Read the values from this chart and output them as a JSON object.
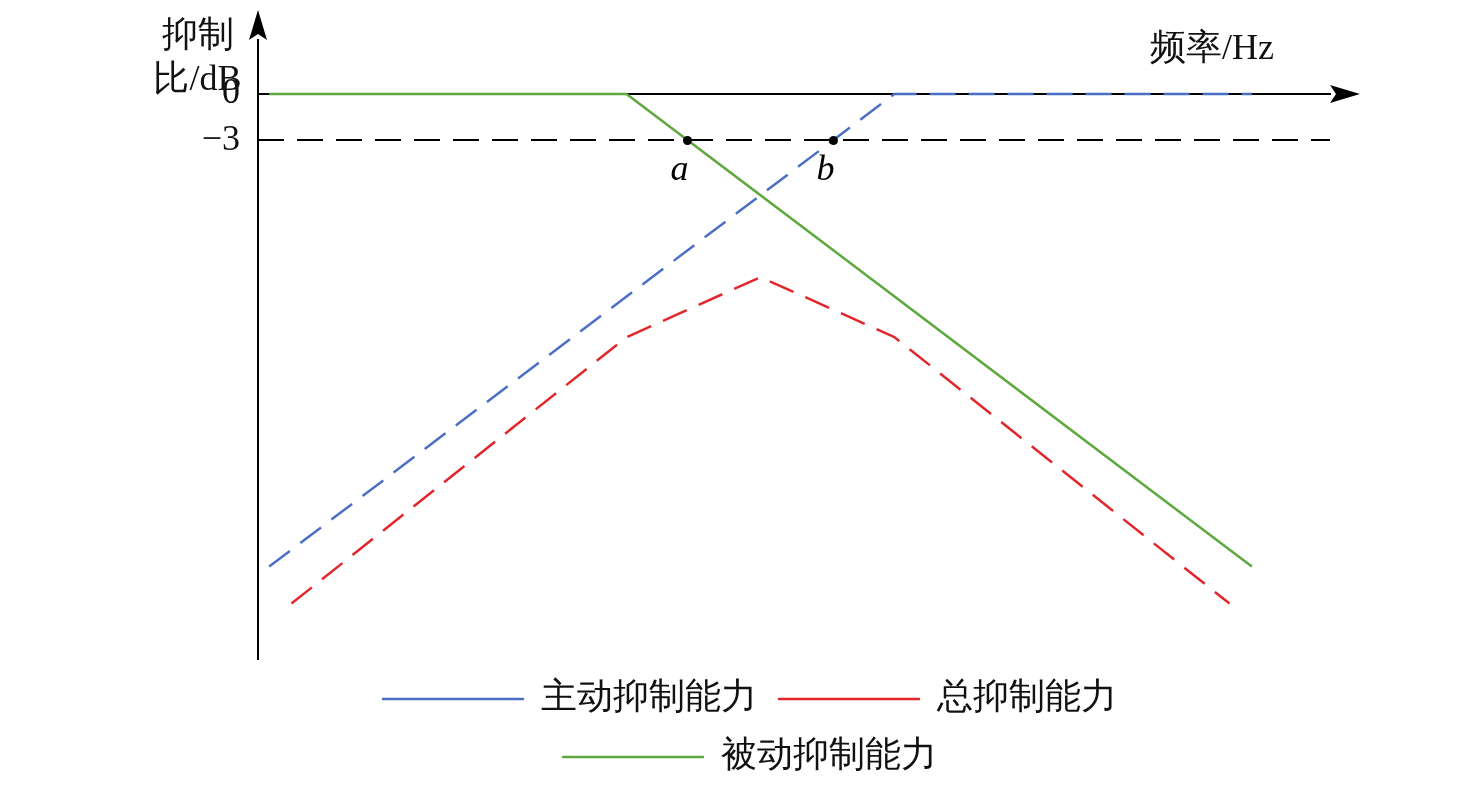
{
  "chart_data": {
    "type": "line",
    "xlabel": "频率/Hz",
    "ylabel": "抑制比/dB",
    "categories": [
      null,
      null,
      null,
      null,
      null,
      null,
      null,
      null,
      null,
      null,
      null,
      null,
      null,
      null,
      null,
      null,
      null,
      null,
      null,
      null,
      null,
      null,
      null,
      null,
      null,
      null,
      null,
      null,
      null,
      null,
      null,
      null,
      null,
      null,
      null,
      null,
      null,
      null,
      null,
      null,
      null,
      null,
      null,
      null,
      null,
      null,
      null,
      null
    ],
    "series": [
      {
        "name": "主动抑制能力",
        "color": "#4a6fc4",
        "line_style": "dashed",
        "values": [
          -30.7,
          null,
          null,
          null,
          null,
          null,
          null,
          null,
          null,
          null,
          null,
          null,
          null,
          null,
          null,
          null,
          null,
          null,
          null,
          null,
          null,
          null,
          null,
          null,
          null,
          null,
          null,
          null,
          0,
          null,
          null,
          null,
          null,
          null,
          null,
          null,
          null,
          null,
          null,
          null,
          null,
          null,
          null,
          null,
          0,
          null,
          null,
          null
        ]
      },
      {
        "name": "总抑制能力",
        "color": "#e3262b",
        "line_style": "dashed",
        "values": [
          null,
          -33.1,
          null,
          null,
          null,
          null,
          null,
          null,
          null,
          null,
          null,
          null,
          null,
          null,
          null,
          null,
          -15.8,
          null,
          null,
          null,
          null,
          null,
          -11.9,
          null,
          null,
          null,
          null,
          null,
          -15.8,
          null,
          null,
          null,
          null,
          null,
          null,
          null,
          null,
          null,
          null,
          null,
          null,
          null,
          null,
          -33.1,
          null,
          null,
          null,
          null
        ]
      },
      {
        "name": "被动抑制能力",
        "color": "#5fa83f",
        "line_style": "solid",
        "values": [
          0,
          null,
          null,
          null,
          null,
          null,
          null,
          null,
          null,
          null,
          null,
          null,
          null,
          null,
          null,
          null,
          0,
          null,
          null,
          null,
          null,
          null,
          null,
          null,
          null,
          null,
          null,
          null,
          null,
          null,
          null,
          null,
          null,
          null,
          null,
          null,
          null,
          null,
          null,
          null,
          null,
          null,
          null,
          null,
          -30.7,
          null,
          null,
          null
        ]
      }
    ],
    "ylim": [
      -36.7,
      3.5
    ],
    "yticks": [
      0,
      {
        "value": -3,
        "label": "−3"
      }
    ],
    "ref_lines": [
      {
        "axis": "y",
        "value": -3,
        "color": "#000000",
        "line_style": "dashed"
      }
    ],
    "annotations": [
      {
        "text": "a",
        "y": -3
      },
      {
        "text": "b",
        "y": -3
      }
    ],
    "grid": false,
    "legend": "bottom",
    "tick_labels": "y",
    "marker": "none"
  }
}
